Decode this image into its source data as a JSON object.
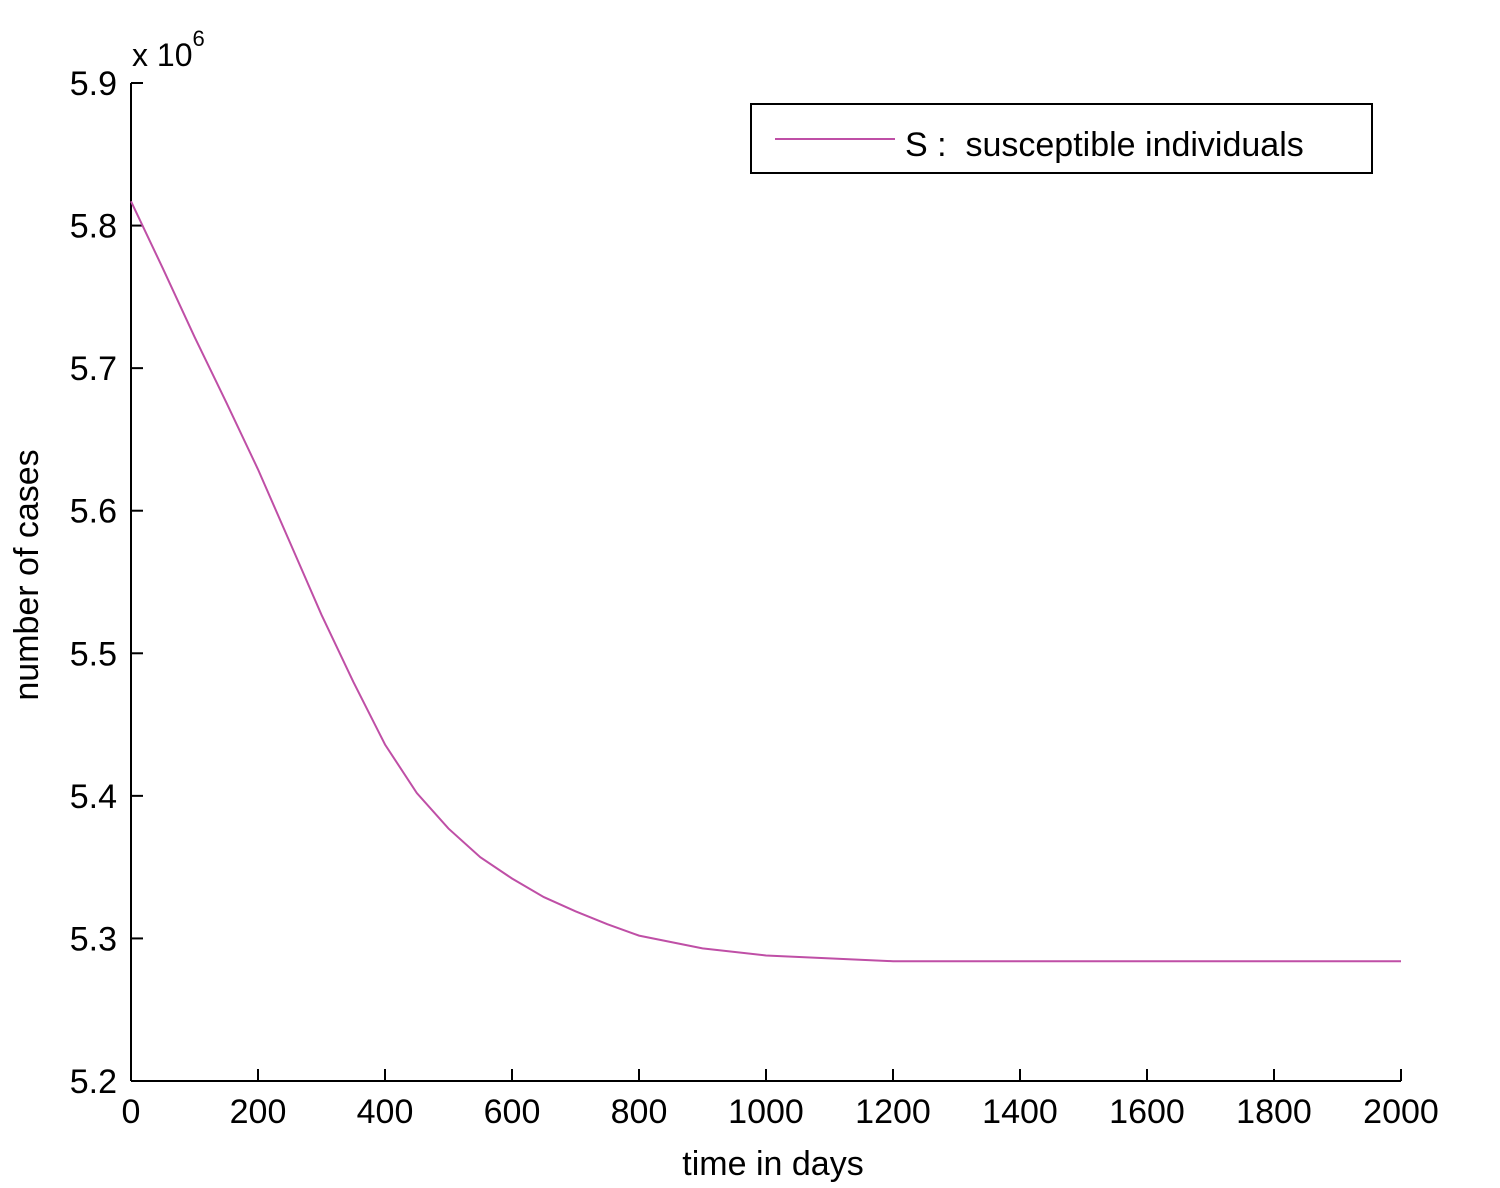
{
  "chart_data": {
    "type": "line",
    "title": "",
    "xlabel": "time in days",
    "ylabel": "number of cases",
    "y_multiplier_label": "x 10",
    "y_multiplier_exponent": "6",
    "xlim": [
      0,
      2000
    ],
    "ylim": [
      5.2,
      5.9
    ],
    "x_ticks": [
      "0",
      "200",
      "400",
      "600",
      "800",
      "1000",
      "1200",
      "1400",
      "1600",
      "1800",
      "2000"
    ],
    "y_ticks": [
      "5.2",
      "5.3",
      "5.4",
      "5.5",
      "5.6",
      "5.7",
      "5.8",
      "5.9"
    ],
    "grid": false,
    "legend_position": "top-right",
    "series": [
      {
        "name": "S :  susceptible individuals",
        "color": "#bf4fa6",
        "x": [
          0,
          50,
          100,
          150,
          200,
          250,
          300,
          350,
          400,
          450,
          500,
          550,
          600,
          650,
          700,
          750,
          800,
          900,
          1000,
          1100,
          1200,
          1400,
          1600,
          1800,
          2000
        ],
        "y": [
          5.817,
          5.77,
          5.722,
          5.676,
          5.629,
          5.578,
          5.527,
          5.48,
          5.436,
          5.402,
          5.377,
          5.357,
          5.342,
          5.329,
          5.319,
          5.31,
          5.302,
          5.293,
          5.288,
          5.286,
          5.284,
          5.284,
          5.284,
          5.284,
          5.284
        ]
      }
    ]
  }
}
